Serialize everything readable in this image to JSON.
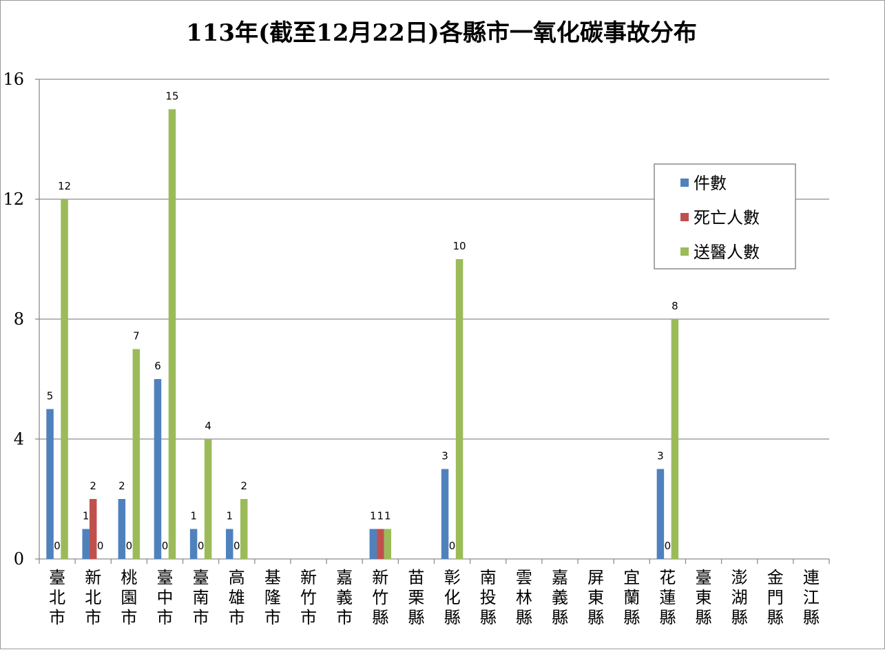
{
  "chart_data": {
    "type": "bar",
    "title": "113年(截至12月22日)各縣市一氧化碳事故分布",
    "xlabel": "",
    "ylabel": "",
    "ylim": [
      0,
      16
    ],
    "yticks": [
      0,
      4,
      8,
      12,
      16
    ],
    "grid": true,
    "legend_position": "top-right",
    "categories": [
      "臺北市",
      "新北市",
      "桃園市",
      "臺中市",
      "臺南市",
      "高雄市",
      "基隆市",
      "新竹市",
      "嘉義市",
      "新竹縣",
      "苗栗縣",
      "彰化縣",
      "南投縣",
      "雲林縣",
      "嘉義縣",
      "屏東縣",
      "宜蘭縣",
      "花蓮縣",
      "臺東縣",
      "澎湖縣",
      "金門縣",
      "連江縣"
    ],
    "series": [
      {
        "name": "件數",
        "color": "#4F81BD",
        "values": [
          5,
          1,
          2,
          6,
          1,
          1,
          null,
          null,
          null,
          1,
          null,
          3,
          null,
          null,
          null,
          null,
          null,
          3,
          null,
          null,
          null,
          null
        ]
      },
      {
        "name": "死亡人數",
        "color": "#C0504D",
        "values": [
          0,
          2,
          0,
          0,
          0,
          0,
          null,
          null,
          null,
          1,
          null,
          0,
          null,
          null,
          null,
          null,
          null,
          0,
          null,
          null,
          null,
          null
        ]
      },
      {
        "name": "送醫人數",
        "color": "#9BBB59",
        "values": [
          12,
          0,
          7,
          15,
          4,
          2,
          null,
          null,
          null,
          1,
          null,
          10,
          null,
          null,
          null,
          null,
          null,
          8,
          null,
          null,
          null,
          null
        ]
      }
    ]
  }
}
